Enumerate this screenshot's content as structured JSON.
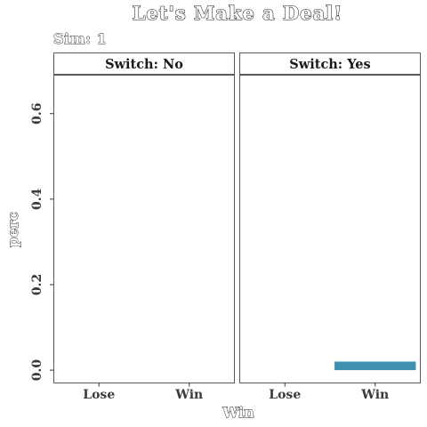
{
  "chart_data": {
    "type": "bar",
    "title": "Let's Make a Deal!",
    "subtitle": "Sim: 1",
    "xlabel": "Win",
    "ylabel": "perc",
    "ylim": [
      -0.03,
      0.69
    ],
    "yticks": [
      0.0,
      0.2,
      0.4,
      0.6
    ],
    "ytick_labels": [
      "0.0",
      "0.2",
      "0.4",
      "0.6"
    ],
    "categories": [
      "Lose",
      "Win"
    ],
    "grid": false,
    "legend": "none",
    "bar_color": "#3f8faf",
    "facets": [
      {
        "label": "Switch: No",
        "values": [
          0.0,
          0.0
        ]
      },
      {
        "label": "Switch: Yes",
        "values": [
          0.0,
          0.02
        ]
      }
    ]
  }
}
